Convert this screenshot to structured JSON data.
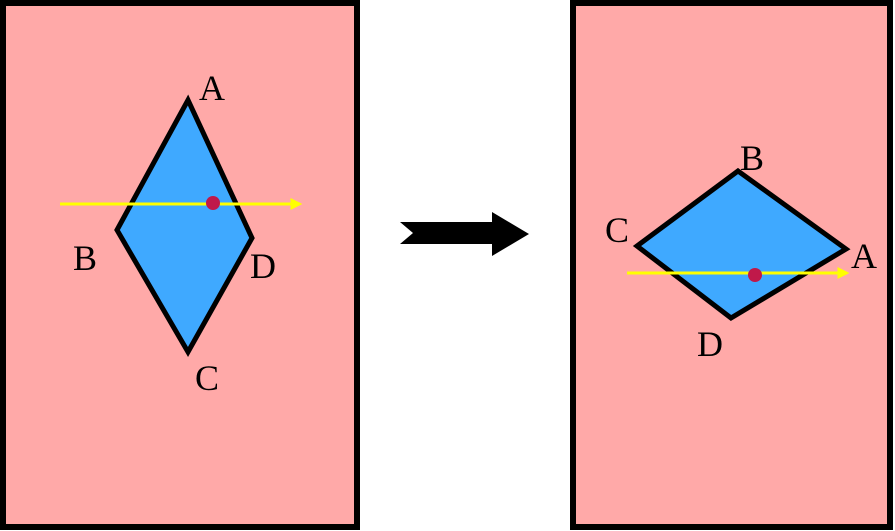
{
  "colors": {
    "panel_fill": "#FFA9A8",
    "panel_border": "#000000",
    "rhombus_fill": "#3FA9FF",
    "rhombus_stroke": "#000000",
    "line_color": "#FFFF00",
    "dot_color": "#C0194A",
    "arrow_color": "#000000",
    "background": "#FFFFFF"
  },
  "left_panel": {
    "vertex_labels": {
      "a": "A",
      "b": "B",
      "c": "C",
      "d": "D"
    }
  },
  "right_panel": {
    "vertex_labels": {
      "a": "A",
      "b": "B",
      "c": "C",
      "d": "D"
    }
  },
  "transition_arrow": {
    "icon": "right-arrow-icon"
  }
}
